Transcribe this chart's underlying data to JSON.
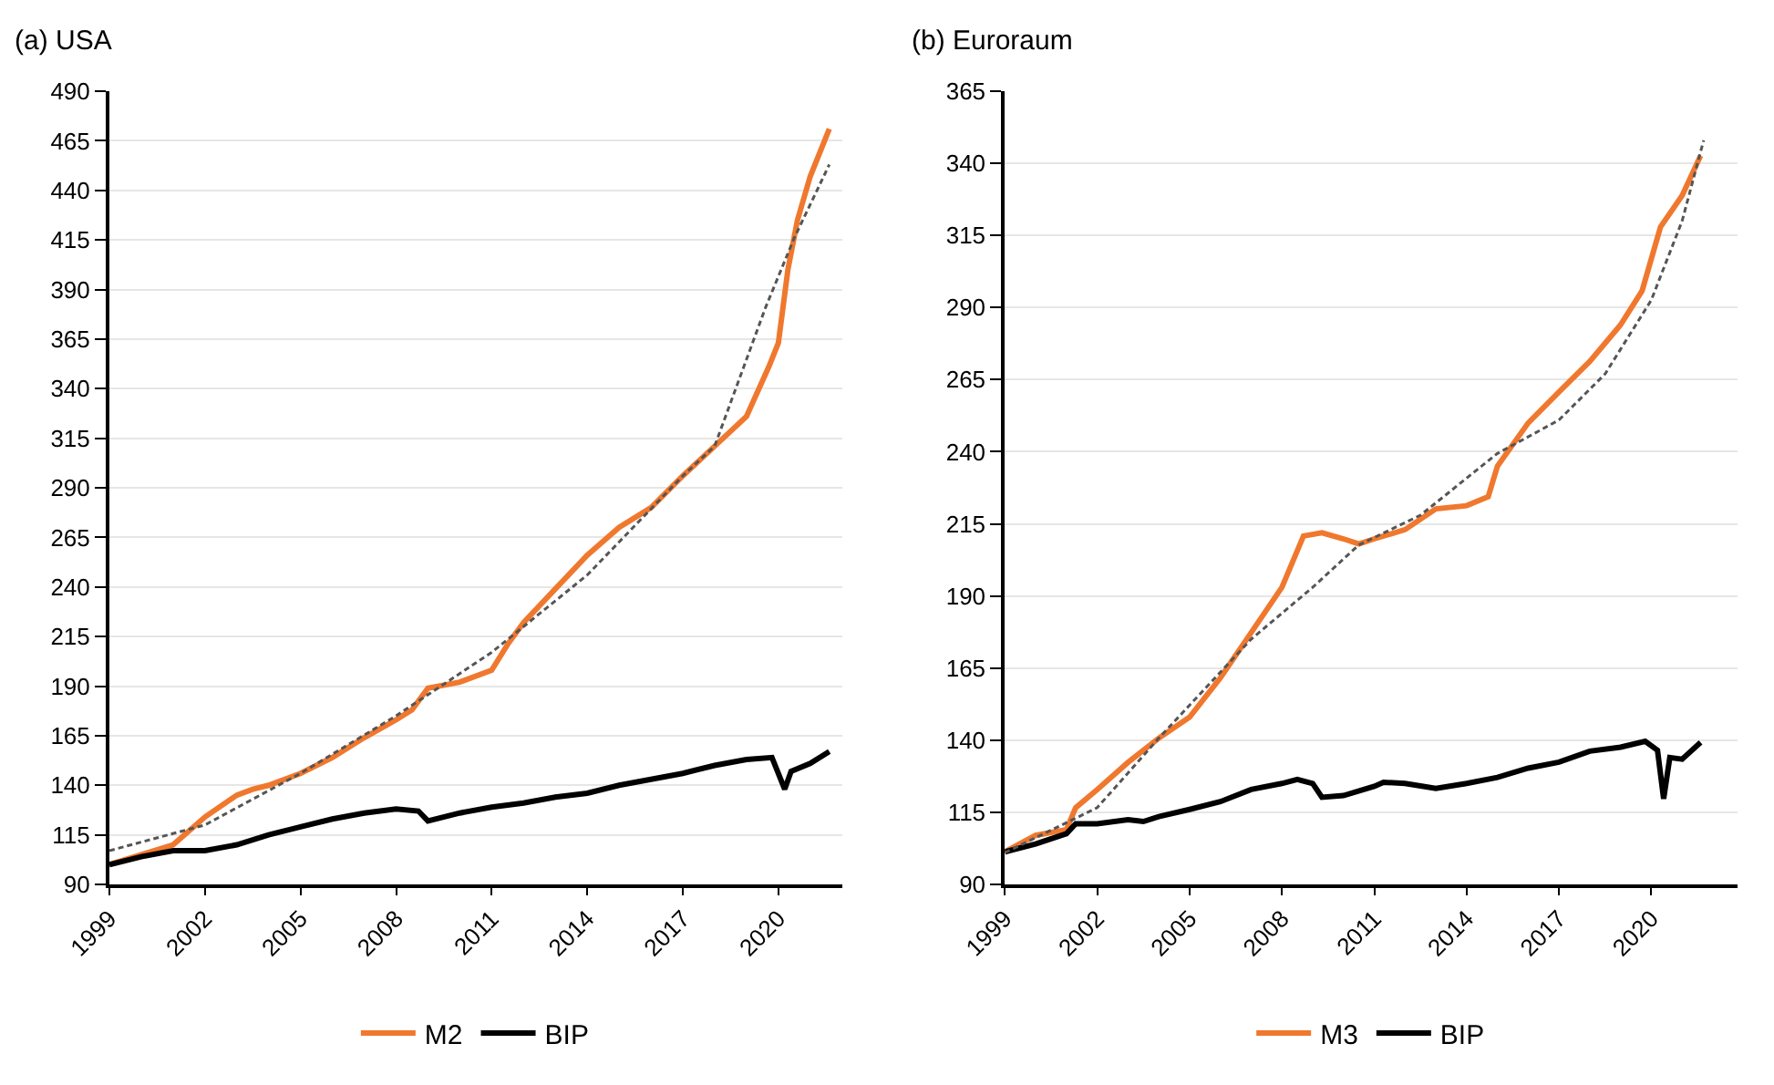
{
  "chart_data": [
    {
      "type": "line",
      "title": "(a) USA",
      "xlim": [
        1999,
        2022
      ],
      "xticks": [
        1999,
        2002,
        2005,
        2008,
        2011,
        2014,
        2017,
        2020
      ],
      "ylim": [
        90,
        490
      ],
      "yticks": [
        90,
        115,
        140,
        165,
        190,
        215,
        240,
        265,
        290,
        315,
        340,
        365,
        390,
        415,
        440,
        465,
        490
      ],
      "grid": "y",
      "legend": "bottom",
      "series": [
        {
          "name": "M2",
          "color": "#f0782e",
          "x": [
            1999,
            2001,
            2002,
            2003,
            2003.5,
            2004,
            2005,
            2006,
            2007,
            2008,
            2008.5,
            2009,
            2010,
            2011,
            2011.5,
            2012,
            2013,
            2014,
            2015,
            2016,
            2017,
            2018,
            2019,
            2019.7,
            2020,
            2020.3,
            2020.6,
            2021,
            2021.6
          ],
          "values": [
            100,
            110,
            124,
            135,
            138,
            140,
            146,
            154,
            164,
            173,
            178,
            189,
            192,
            198,
            211,
            222,
            239,
            256,
            270,
            280,
            296,
            311,
            326,
            351,
            363,
            400,
            425,
            447,
            471
          ]
        },
        {
          "name": "BIP",
          "color": "#000000",
          "x": [
            1999,
            2000,
            2001,
            2002,
            2003,
            2004,
            2005,
            2006,
            2007,
            2008,
            2008.7,
            2009,
            2010,
            2011,
            2012,
            2013,
            2014,
            2015,
            2016,
            2017,
            2018,
            2019,
            2019.8,
            2020.2,
            2020.4,
            2021,
            2021.6
          ],
          "values": [
            100,
            104,
            107,
            107,
            110,
            115,
            119,
            123,
            126,
            128,
            127,
            122,
            126,
            129,
            131,
            134,
            136,
            140,
            143,
            146,
            150,
            153,
            154,
            138,
            147,
            151,
            157
          ]
        },
        {
          "color": "#555555",
          "line_style": "dashed",
          "x": [
            1999,
            2002,
            2005,
            2008,
            2011,
            2014,
            2017,
            2018,
            2019.6,
            2020.5,
            2021.6
          ],
          "values": [
            107,
            120,
            146,
            175,
            207,
            246,
            296,
            311,
            381,
            416,
            453
          ]
        }
      ]
    },
    {
      "type": "line",
      "title": "(b) Euroraum",
      "xlim": [
        1999,
        2022.8
      ],
      "xticks": [
        1999,
        2002,
        2005,
        2008,
        2011,
        2014,
        2017,
        2020
      ],
      "ylim": [
        90,
        365
      ],
      "yticks": [
        90,
        115,
        140,
        165,
        190,
        215,
        240,
        265,
        290,
        315,
        340,
        365
      ],
      "grid": "y",
      "legend": "bottom",
      "series": [
        {
          "name": "M3",
          "color": "#f0782e",
          "x": [
            1999,
            2000,
            2001,
            2001.3,
            2002,
            2003,
            2004,
            2005,
            2006,
            2007,
            2008,
            2008.7,
            2009.3,
            2010,
            2010.5,
            2011,
            2012,
            2013,
            2014,
            2014.7,
            2015,
            2016,
            2017,
            2018,
            2019,
            2019.7,
            2020.3,
            2021,
            2021.6
          ],
          "values": [
            101.3,
            107,
            109,
            116.6,
            122.9,
            132.3,
            140.7,
            148,
            161.6,
            177.3,
            193,
            210.8,
            211.9,
            209.8,
            208,
            209.8,
            213,
            220.2,
            221.3,
            224.4,
            235,
            250,
            260.7,
            271.3,
            284,
            295.8,
            318,
            328.8,
            342.6
          ]
        },
        {
          "name": "BIP",
          "color": "#000000",
          "x": [
            1999,
            2000,
            2001,
            2001.3,
            2002,
            2003,
            2003.5,
            2004,
            2005,
            2006,
            2007,
            2008,
            2008.5,
            2009,
            2009.3,
            2010,
            2011,
            2011.3,
            2012,
            2013,
            2014,
            2015,
            2016,
            2017,
            2018,
            2019,
            2019.8,
            2020.2,
            2020.4,
            2020.6,
            2021,
            2021.6
          ],
          "values": [
            101.3,
            104,
            107.6,
            111,
            111,
            112.4,
            111.8,
            113.5,
            116,
            118.7,
            122.9,
            125,
            126.4,
            125,
            120.2,
            120.8,
            124,
            125.4,
            125,
            123.3,
            125,
            127.1,
            130.3,
            132.4,
            136.2,
            137.6,
            139.6,
            136.5,
            119.7,
            134,
            133.4,
            139.2
          ]
        },
        {
          "color": "#555555",
          "line_style": "dashed",
          "x": [
            1999,
            2002,
            2004,
            2007,
            2009,
            2010.5,
            2012.5,
            2015,
            2017,
            2018.5,
            2020,
            2021,
            2021.7
          ],
          "values": [
            101,
            116.6,
            140.7,
            175,
            193,
            207.7,
            218,
            239.4,
            251,
            267,
            292.6,
            320,
            348
          ]
        }
      ]
    }
  ]
}
